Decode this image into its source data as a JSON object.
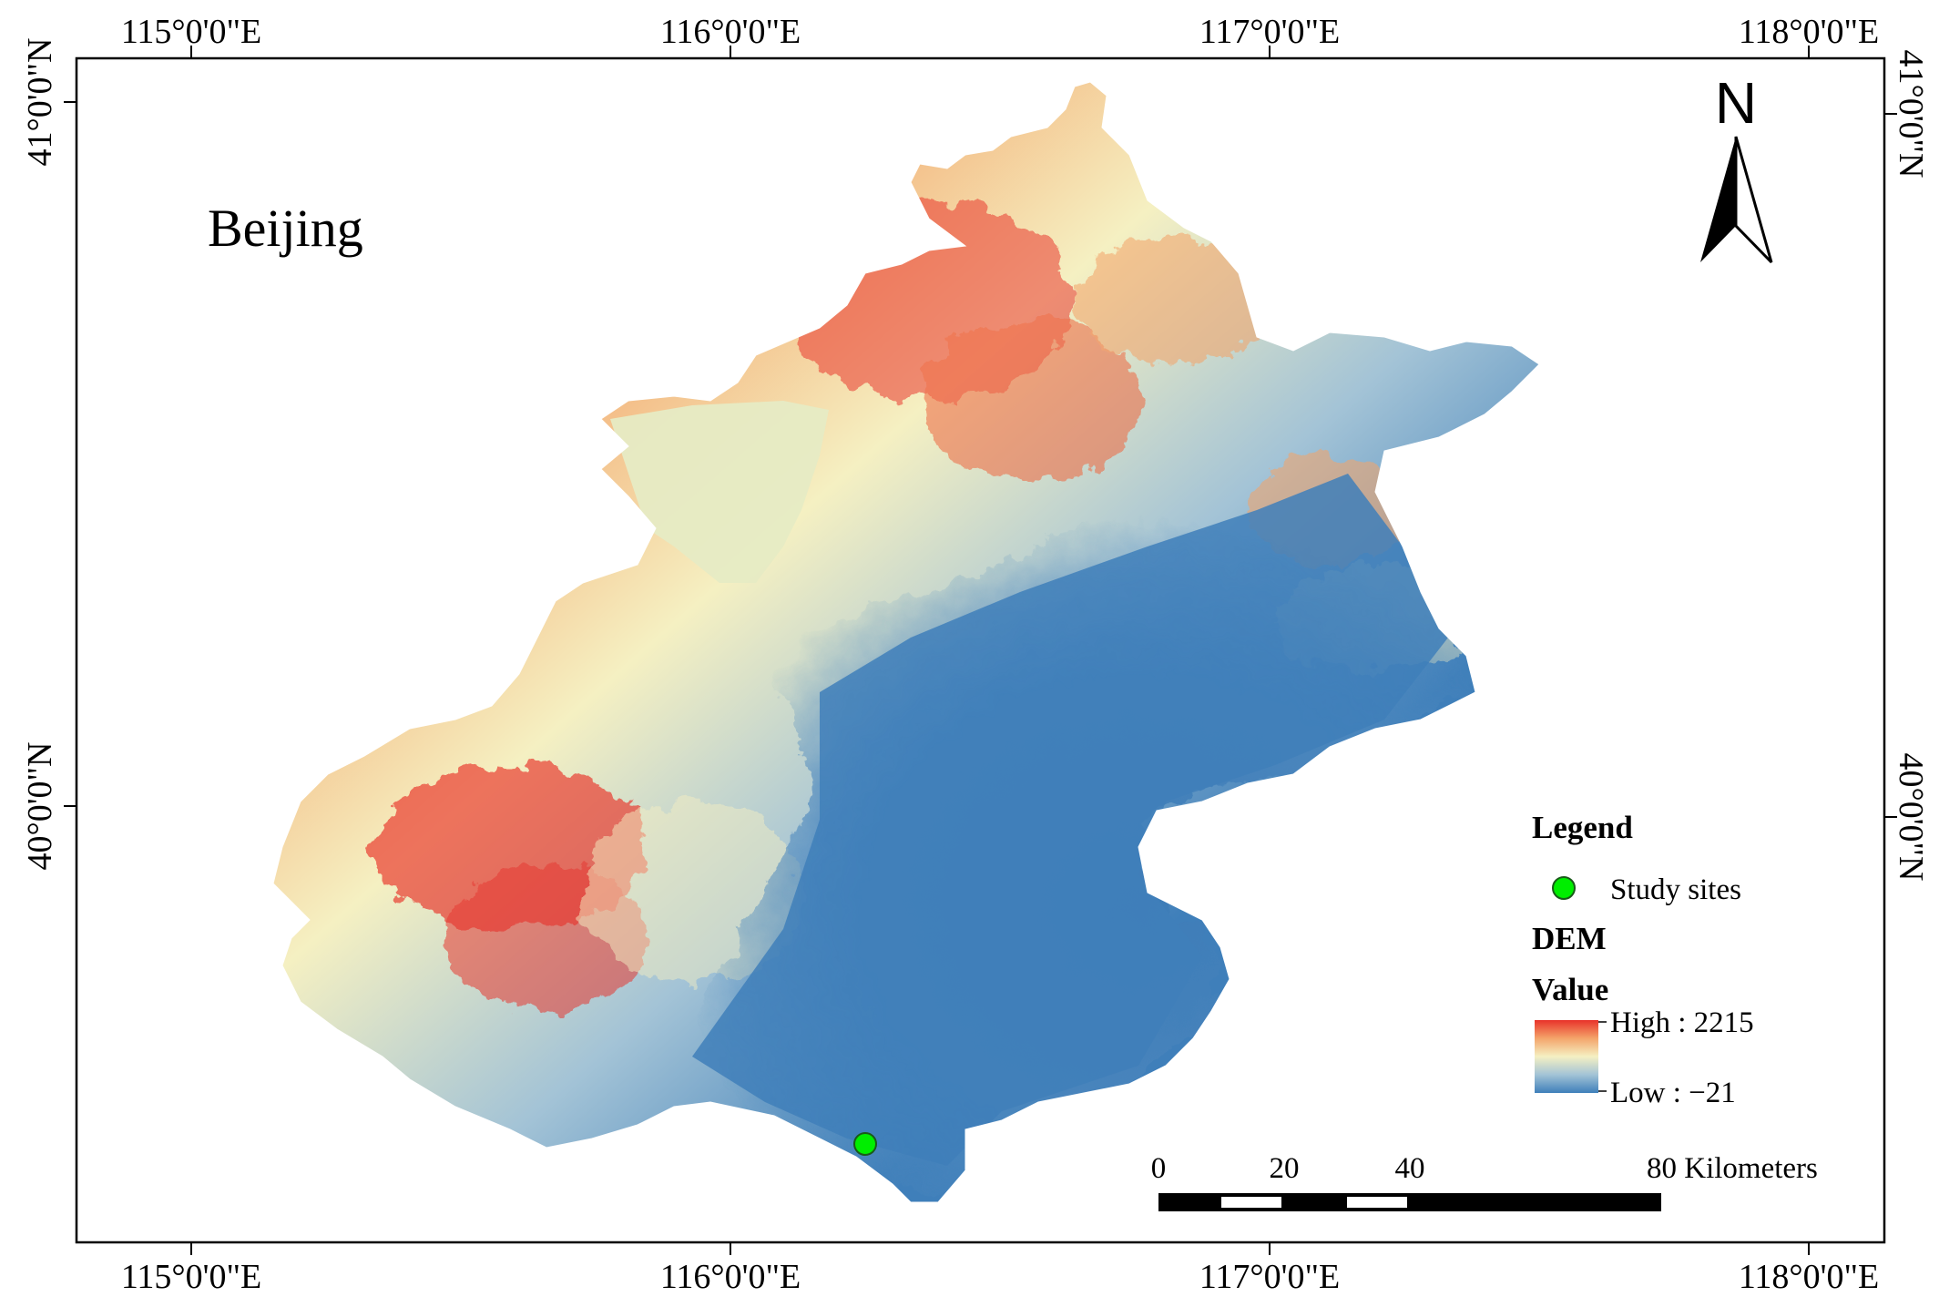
{
  "map": {
    "region_label": "Beijing",
    "frame": {
      "top_labels": [
        "115°0'0\"E",
        "116°0'0\"E",
        "117°0'0\"E",
        "118°0'0\"E"
      ],
      "bottom_labels": [
        "115°0'0\"E",
        "116°0'0\"E",
        "117°0'0\"E",
        "118°0'0\"E"
      ],
      "left_labels": [
        "41°0'0\"N",
        "40°0'0\"N"
      ],
      "right_labels": [
        "41°0'0\"N",
        "40°0'0\"N"
      ]
    },
    "north_arrow": {
      "label": "N",
      "icon": "north-arrow-icon"
    },
    "legend": {
      "title": "Legend",
      "point_layer": {
        "label": "Study sites",
        "color": "#00ee00",
        "icon": "green-circle-marker-icon"
      },
      "raster_layer": "DEM",
      "raster_field": "Value",
      "high_label": "High : 2215",
      "low_label": "Low : −21",
      "ramp_colors": [
        "#e8322a",
        "#f4a46a",
        "#f5f0c2",
        "#a3c3d6",
        "#3f7fba"
      ]
    },
    "scale_bar": {
      "labels": [
        "0",
        "20",
        "40",
        "80 Kilometers"
      ],
      "unit": "Kilometers"
    },
    "study_sites": [
      {
        "name": "Study site",
        "lon": 116.25,
        "lat": 39.52
      }
    ]
  }
}
